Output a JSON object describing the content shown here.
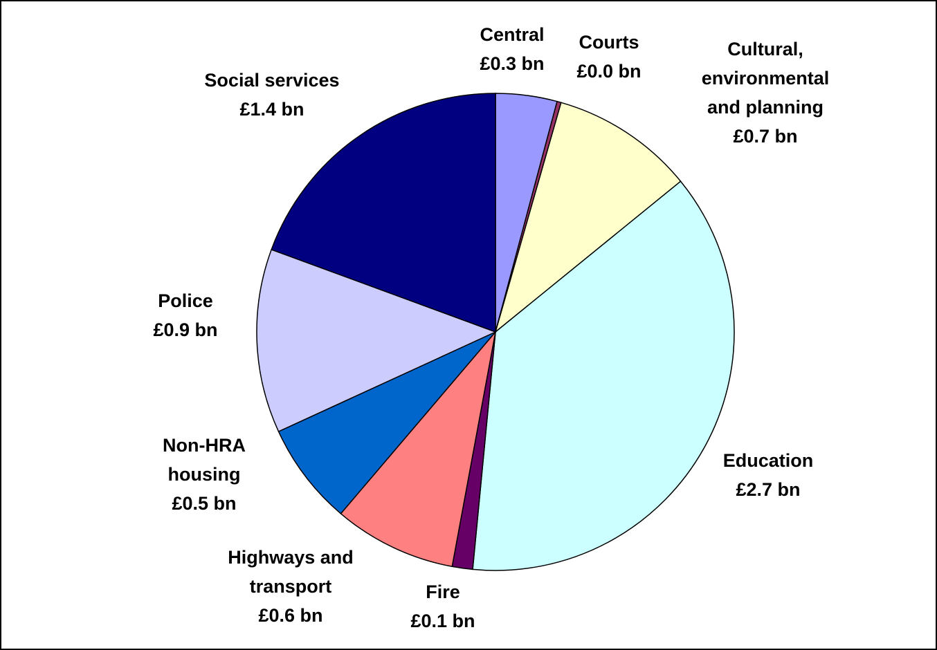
{
  "chart_data": {
    "type": "pie",
    "categories": [
      "Central",
      "Courts",
      "Cultural,\nenvironmental\nand planning",
      "Education",
      "Fire",
      "Highways and\ntransport",
      "Non-HRA\nhousing",
      "Police",
      "Social services"
    ],
    "values": [
      0.3,
      0.02,
      0.7,
      2.7,
      0.1,
      0.6,
      0.5,
      0.9,
      1.4
    ],
    "value_labels": [
      "£0.3 bn",
      "£0.0 bn",
      "£0.7 bn",
      "£2.7 bn",
      "£0.1 bn",
      "£0.6 bn",
      "£0.5 bn",
      "£0.9 bn",
      "£1.4 bn"
    ],
    "colors": [
      "#9999ff",
      "#993366",
      "#ffffcc",
      "#ccffff",
      "#660066",
      "#ff8080",
      "#0066cc",
      "#ccccff",
      "#000080"
    ]
  }
}
